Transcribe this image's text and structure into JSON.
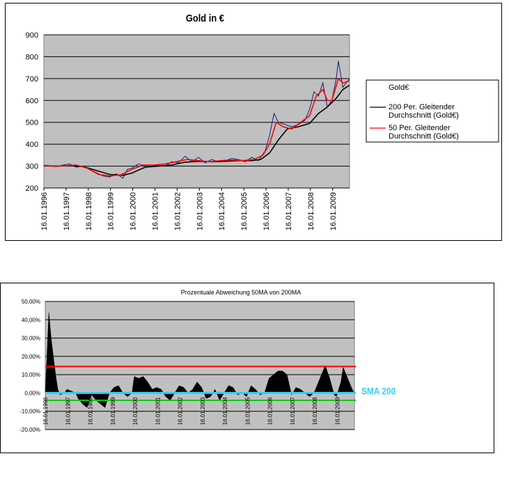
{
  "chart_data": [
    {
      "type": "line",
      "title": "Gold in €",
      "xlabel": "",
      "ylabel": "",
      "ylim": [
        200,
        900
      ],
      "yticks": [
        200,
        300,
        400,
        500,
        600,
        700,
        800,
        900
      ],
      "xlim": [
        1996.04,
        2009.8
      ],
      "x_tick_labels": [
        "16.01.1996",
        "16.01.1997",
        "16.01.1998",
        "16.01.1999",
        "16.01.2000",
        "16.01.2001",
        "16.01.2002",
        "16.01.2003",
        "16.01.2004",
        "16.01.2005",
        "16.01.2006",
        "16.01.2007",
        "16.01.2008",
        "16.01.2009"
      ],
      "x_tick_years": [
        1996.04,
        1997.04,
        1998.04,
        1999.04,
        2000.04,
        2001.04,
        2002.04,
        2003.04,
        2004.04,
        2005.04,
        2006.04,
        2007.04,
        2008.04,
        2009.04
      ],
      "grid": true,
      "legend": "right",
      "series": [
        {
          "name": "Gold€",
          "color": "#1a1a80",
          "x": [
            1996.04,
            1996.3,
            1996.6,
            1996.9,
            1997.2,
            1997.5,
            1997.8,
            1998.1,
            1998.4,
            1998.7,
            1999.0,
            1999.3,
            1999.6,
            1999.8,
            2000.0,
            2000.3,
            2000.6,
            2000.9,
            2001.2,
            2001.5,
            2001.8,
            2002.1,
            2002.4,
            2002.7,
            2003.0,
            2003.3,
            2003.6,
            2003.9,
            2004.2,
            2004.5,
            2004.8,
            2005.1,
            2005.4,
            2005.7,
            2006.0,
            2006.2,
            2006.4,
            2006.6,
            2006.9,
            2007.2,
            2007.5,
            2007.8,
            2008.0,
            2008.2,
            2008.4,
            2008.6,
            2008.8,
            2009.0,
            2009.2,
            2009.3,
            2009.5,
            2009.8
          ],
          "values": [
            305,
            300,
            298,
            305,
            310,
            295,
            300,
            285,
            270,
            255,
            250,
            265,
            245,
            285,
            290,
            310,
            300,
            300,
            305,
            300,
            320,
            315,
            345,
            320,
            340,
            315,
            330,
            320,
            325,
            335,
            330,
            320,
            340,
            325,
            370,
            440,
            540,
            500,
            490,
            480,
            490,
            510,
            560,
            640,
            620,
            680,
            570,
            600,
            700,
            780,
            660,
            700
          ]
        },
        {
          "name": "200 Per. Gleitender Durchschnitt (Gold€)",
          "color": "#000000",
          "x": [
            1996.04,
            1996.6,
            1997.2,
            1997.8,
            1998.4,
            1999.0,
            1999.6,
            2000.0,
            2000.6,
            2001.2,
            2001.8,
            2002.4,
            2003.0,
            2003.6,
            2004.2,
            2004.8,
            2005.4,
            2005.8,
            2006.2,
            2006.6,
            2007.0,
            2007.5,
            2008.0,
            2008.4,
            2008.8,
            2009.2,
            2009.5,
            2009.8
          ],
          "values": [
            302,
            300,
            302,
            298,
            280,
            262,
            258,
            268,
            295,
            300,
            305,
            318,
            322,
            320,
            322,
            325,
            325,
            330,
            360,
            420,
            470,
            480,
            495,
            540,
            570,
            610,
            650,
            670
          ]
        },
        {
          "name": "50 Per. Gleitender Durchschnitt (Gold€)",
          "color": "#ff0000",
          "x": [
            1996.04,
            1996.5,
            1997.0,
            1997.5,
            1998.0,
            1998.5,
            1999.0,
            1999.5,
            2000.0,
            2000.5,
            2001.0,
            2001.5,
            2002.0,
            2002.5,
            2003.0,
            2003.5,
            2004.0,
            2004.5,
            2005.0,
            2005.5,
            2005.9,
            2006.2,
            2006.5,
            2006.8,
            2007.2,
            2007.6,
            2008.0,
            2008.3,
            2008.6,
            2008.8,
            2009.0,
            2009.3,
            2009.5,
            2009.8
          ],
          "values": [
            303,
            300,
            302,
            305,
            290,
            262,
            255,
            260,
            285,
            305,
            305,
            310,
            320,
            330,
            325,
            320,
            325,
            328,
            325,
            330,
            350,
            400,
            500,
            480,
            470,
            500,
            530,
            620,
            650,
            600,
            600,
            700,
            680,
            690
          ]
        }
      ]
    },
    {
      "type": "area",
      "title": "Prozentuale Abweichung 50MA von 200MA",
      "xlabel": "",
      "ylabel": "",
      "ylim": [
        -20,
        50
      ],
      "yticks": [
        -20,
        -10,
        0,
        10,
        20,
        30,
        40,
        50
      ],
      "ytick_labels": [
        "-20,00%",
        "-10,00%",
        "0,00%",
        "10,00%",
        "20,00%",
        "30,00%",
        "40,00%",
        "50,00%"
      ],
      "xlim": [
        1996.04,
        2009.8
      ],
      "x_tick_labels": [
        "16.01.1996",
        "16.01.1997",
        "16.01.1998",
        "16.01.1999",
        "16.01.2000",
        "16.01.2001",
        "16.01.2002",
        "16.01.2003",
        "16.01.2004",
        "16.01.2005",
        "16.01.2006",
        "16.01.2007",
        "16.01.2008",
        "16.01.2009"
      ],
      "x_tick_years": [
        1996.04,
        1997.04,
        1998.04,
        1999.04,
        2000.04,
        2001.04,
        2002.04,
        2003.04,
        2004.04,
        2005.04,
        2006.04,
        2007.04,
        2008.04,
        2009.04
      ],
      "grid": true,
      "reference_lines": [
        {
          "value": 14.5,
          "color": "#ff0000"
        },
        {
          "value": 0,
          "color": "#33ccff",
          "label": "SMA 200"
        },
        {
          "value": -4,
          "color": "#00cc00"
        }
      ],
      "series": [
        {
          "name": "",
          "color": "#000000",
          "x": [
            1996.04,
            1996.2,
            1996.3,
            1996.4,
            1996.5,
            1996.6,
            1996.7,
            1996.9,
            1997.0,
            1997.2,
            1997.4,
            1997.5,
            1997.7,
            1997.9,
            1998.1,
            1998.3,
            1998.5,
            1998.7,
            1998.9,
            1999.1,
            1999.3,
            1999.5,
            1999.7,
            1999.9,
            2000.0,
            2000.2,
            2000.4,
            2000.6,
            2000.8,
            2001.0,
            2001.2,
            2001.4,
            2001.6,
            2001.8,
            2002.0,
            2002.2,
            2002.4,
            2002.6,
            2002.8,
            2003.0,
            2003.2,
            2003.4,
            2003.6,
            2003.8,
            2004.0,
            2004.2,
            2004.4,
            2004.6,
            2004.8,
            2005.0,
            2005.2,
            2005.4,
            2005.6,
            2005.8,
            2006.0,
            2006.2,
            2006.4,
            2006.6,
            2006.8,
            2007.0,
            2007.2,
            2007.4,
            2007.6,
            2007.8,
            2008.0,
            2008.2,
            2008.4,
            2008.5,
            2008.7,
            2008.9,
            2009.0,
            2009.2,
            2009.3,
            2009.5,
            2009.7,
            2009.8
          ],
          "values": [
            0,
            44,
            30,
            20,
            10,
            2,
            -1,
            0,
            2,
            1,
            0,
            -3,
            -6,
            -8,
            -1,
            -4,
            -6,
            -8,
            0,
            3,
            4,
            0,
            -2,
            0,
            9,
            8,
            9,
            6,
            2,
            3,
            2,
            -2,
            -4,
            0,
            4,
            3,
            0,
            2,
            6,
            3,
            -3,
            -2,
            2,
            -4,
            0,
            4,
            3,
            -1,
            0,
            -2,
            4,
            2,
            -1,
            0,
            8,
            10,
            12,
            12,
            10,
            -1,
            3,
            2,
            0,
            -2,
            0,
            6,
            12,
            15,
            8,
            -1,
            -2,
            6,
            14,
            8,
            2,
            0
          ]
        }
      ]
    }
  ]
}
